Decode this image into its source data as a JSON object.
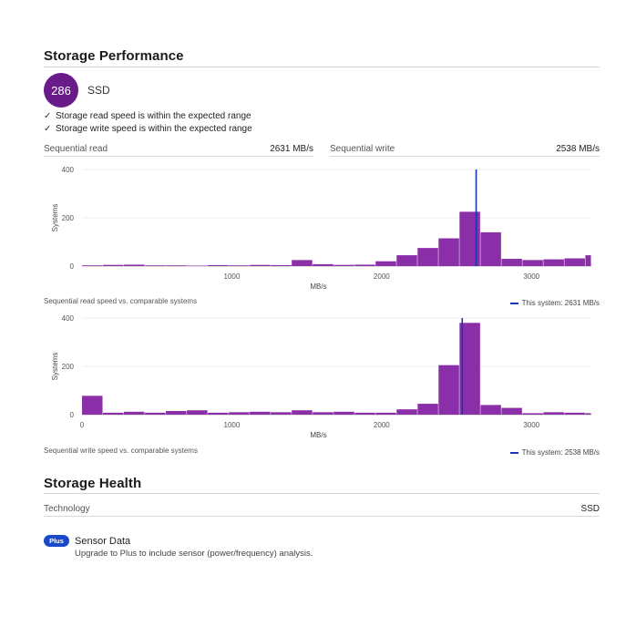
{
  "performance": {
    "title": "Storage Performance",
    "score": "286",
    "drive_type": "SSD",
    "checks": [
      "Storage read speed is within the expected range",
      "Storage write speed is within the expected range"
    ],
    "read": {
      "label": "Sequential read",
      "value": "2631 MB/s"
    },
    "write": {
      "label": "Sequential write",
      "value": "2538 MB/s"
    }
  },
  "colors": {
    "bar": "#8b2fa8",
    "marker": "#1a35b5",
    "score_bg": "#6a1b8a",
    "plus_badge": "#1749c8"
  },
  "chart_data": [
    {
      "type": "bar",
      "caption": "Sequential read speed vs. comparable systems",
      "legend": "This system: 2631 MB/s",
      "legend_position": "bottom-right",
      "xlabel": "MB/s",
      "ylabel": "Systems",
      "xlim": [
        0,
        3400
      ],
      "ylim": [
        0,
        400
      ],
      "xticks": [
        1000,
        2000,
        3000
      ],
      "yticks": [
        0,
        200,
        400
      ],
      "grid": true,
      "bin_width": 140,
      "bins_start": [
        0,
        140,
        280,
        420,
        560,
        700,
        840,
        980,
        1120,
        1260,
        1400,
        1540,
        1680,
        1820,
        1960,
        2100,
        2240,
        2380,
        2520,
        2660,
        2800,
        2940,
        3080,
        3220,
        3360
      ],
      "values": [
        3,
        5,
        6,
        3,
        3,
        2,
        4,
        3,
        5,
        4,
        25,
        8,
        5,
        6,
        20,
        45,
        75,
        115,
        225,
        140,
        30,
        25,
        28,
        32,
        45
      ],
      "marker": 2631
    },
    {
      "type": "bar",
      "caption": "Sequential write speed vs. comparable systems",
      "legend": "This system: 2538 MB/s",
      "legend_position": "bottom-right",
      "xlabel": "MB/s",
      "ylabel": "Systems",
      "xlim": [
        0,
        3400
      ],
      "ylim": [
        0,
        400
      ],
      "xticks": [
        0,
        1000,
        2000,
        3000
      ],
      "yticks": [
        0,
        200,
        400
      ],
      "grid": true,
      "bin_width": 140,
      "bins_start": [
        0,
        140,
        280,
        420,
        560,
        700,
        840,
        980,
        1120,
        1260,
        1400,
        1540,
        1680,
        1820,
        1960,
        2100,
        2240,
        2380,
        2520,
        2660,
        2800,
        2940,
        3080,
        3220,
        3360
      ],
      "values": [
        78,
        8,
        12,
        8,
        15,
        18,
        8,
        10,
        12,
        10,
        18,
        10,
        12,
        8,
        8,
        22,
        45,
        205,
        380,
        40,
        28,
        6,
        10,
        8,
        6
      ],
      "marker": 2538
    }
  ],
  "health": {
    "title": "Storage Health",
    "technology_label": "Technology",
    "technology_value": "SSD",
    "plus_badge": "Plus",
    "sensor_title": "Sensor Data",
    "sensor_desc": "Upgrade to Plus to include sensor (power/frequency) analysis."
  }
}
